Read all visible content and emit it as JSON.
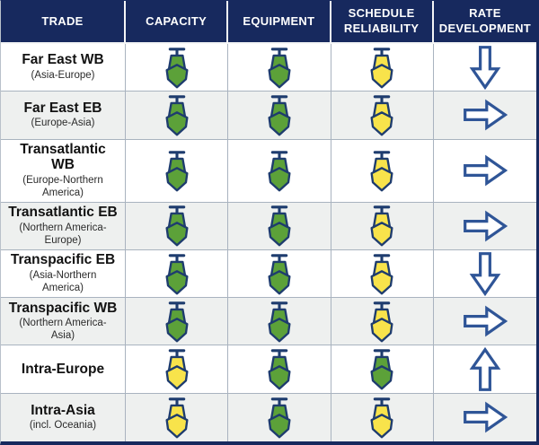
{
  "table": {
    "columns": [
      {
        "id": "trade",
        "label": "TRADE"
      },
      {
        "id": "capacity",
        "label": "CAPACITY"
      },
      {
        "id": "equipment",
        "label": "EQUIPMENT"
      },
      {
        "id": "schedule_reliability",
        "label": "SCHEDULE RELIABILITY"
      },
      {
        "id": "rate_development",
        "label": "RATE DEVELOPMENT"
      }
    ],
    "rows": [
      {
        "trade": "Far East WB",
        "subtitle": "(Asia-Europe)",
        "capacity": "ship-green",
        "equipment": "ship-green",
        "schedule_reliability": "ship-yellow",
        "rate_development": "arrow-down"
      },
      {
        "trade": "Far East EB",
        "subtitle": "(Europe-Asia)",
        "capacity": "ship-green",
        "equipment": "ship-green",
        "schedule_reliability": "ship-yellow",
        "rate_development": "arrow-right"
      },
      {
        "trade": "Transatlantic WB",
        "subtitle": "(Europe-Northern America)",
        "capacity": "ship-green",
        "equipment": "ship-green",
        "schedule_reliability": "ship-yellow",
        "rate_development": "arrow-right"
      },
      {
        "trade": "Transatlantic EB",
        "subtitle": "(Northern America-Europe)",
        "capacity": "ship-green",
        "equipment": "ship-green",
        "schedule_reliability": "ship-yellow",
        "rate_development": "arrow-right"
      },
      {
        "trade": "Transpacific EB",
        "subtitle": "(Asia-Northern America)",
        "capacity": "ship-green",
        "equipment": "ship-green",
        "schedule_reliability": "ship-yellow",
        "rate_development": "arrow-down"
      },
      {
        "trade": "Transpacific WB",
        "subtitle": "(Northern America-Asia)",
        "capacity": "ship-green",
        "equipment": "ship-green",
        "schedule_reliability": "ship-yellow",
        "rate_development": "arrow-right"
      },
      {
        "trade": "Intra-Europe",
        "subtitle": "",
        "capacity": "ship-yellow",
        "equipment": "ship-green",
        "schedule_reliability": "ship-green",
        "rate_development": "arrow-up"
      },
      {
        "trade": "Intra-Asia",
        "subtitle": "(incl. Oceania)",
        "capacity": "ship-yellow",
        "equipment": "ship-green",
        "schedule_reliability": "ship-yellow",
        "rate_development": "arrow-right"
      }
    ]
  },
  "icon_legend": {
    "ship-green": "green ship (favorable/normal)",
    "ship-yellow": "yellow ship (caution/constrained)",
    "arrow-down": "rates decreasing",
    "arrow-right": "rates stable",
    "arrow-up": "rates increasing"
  },
  "colors": {
    "header_bg": "#17295e",
    "header_text": "#ffffff",
    "ship_green": "#5ca139",
    "ship_yellow": "#f8e34b",
    "ship_outline": "#1e3c6e",
    "arrow_blue": "#2f5597",
    "arrow_fill": "#ffffff",
    "row_alt_bg": "#eef0ef",
    "grid_border": "#a9b3bf"
  },
  "chart_data": {
    "type": "table",
    "title": "",
    "columns": [
      "TRADE",
      "CAPACITY",
      "EQUIPMENT",
      "SCHEDULE RELIABILITY",
      "RATE DEVELOPMENT"
    ],
    "rows": [
      [
        "Far East WB (Asia-Europe)",
        "green-ship",
        "green-ship",
        "yellow-ship",
        "down-arrow"
      ],
      [
        "Far East EB (Europe-Asia)",
        "green-ship",
        "green-ship",
        "yellow-ship",
        "right-arrow"
      ],
      [
        "Transatlantic WB (Europe-Northern America)",
        "green-ship",
        "green-ship",
        "yellow-ship",
        "right-arrow"
      ],
      [
        "Transatlantic EB (Northern America-Europe)",
        "green-ship",
        "green-ship",
        "yellow-ship",
        "right-arrow"
      ],
      [
        "Transpacific EB (Asia-Northern America)",
        "green-ship",
        "green-ship",
        "yellow-ship",
        "down-arrow"
      ],
      [
        "Transpacific WB (Northern America-Asia)",
        "green-ship",
        "green-ship",
        "yellow-ship",
        "right-arrow"
      ],
      [
        "Intra-Europe",
        "yellow-ship",
        "green-ship",
        "green-ship",
        "up-arrow"
      ],
      [
        "Intra-Asia (incl. Oceania)",
        "yellow-ship",
        "green-ship",
        "yellow-ship",
        "right-arrow"
      ]
    ]
  }
}
